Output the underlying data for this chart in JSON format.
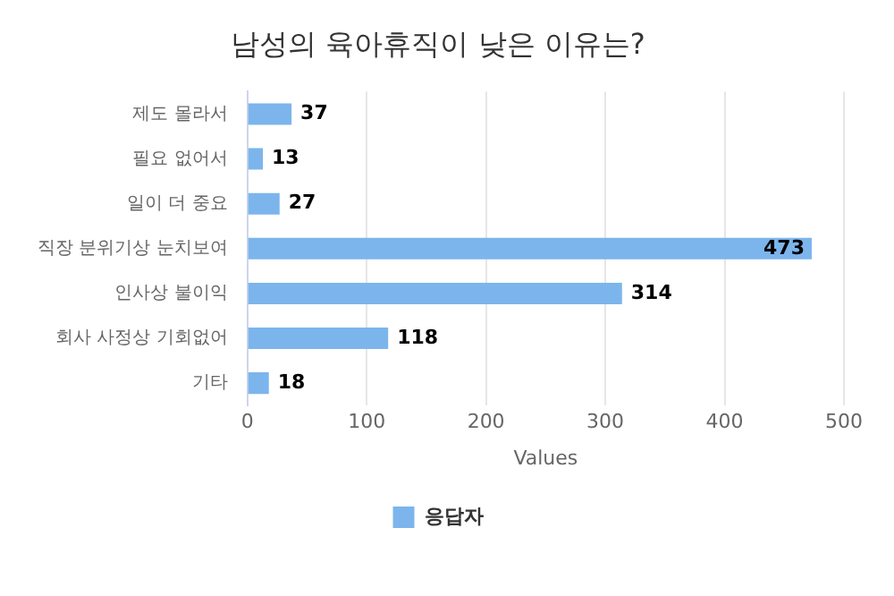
{
  "chart_data": {
    "type": "bar",
    "orientation": "horizontal",
    "title": "남성의 육아휴직이 낮은 이유는?",
    "xlabel": "Values",
    "categories": [
      "제도 몰라서",
      "필요 없어서",
      "일이 더 중요",
      "직장 분위기상 눈치보여",
      "인사상 불이익",
      "회사 사정상 기회없어",
      "기타"
    ],
    "series": [
      {
        "name": "응답자",
        "color": "#7cb5ec",
        "values": [
          37,
          13,
          27,
          473,
          314,
          118,
          18
        ]
      }
    ],
    "xlim": [
      0,
      500
    ],
    "xticks": [
      0,
      100,
      200,
      300,
      400,
      500
    ],
    "grid": "x",
    "legend": "bottom",
    "data_labels": true
  }
}
